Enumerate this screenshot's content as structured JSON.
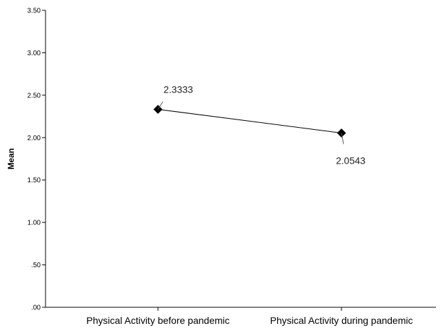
{
  "chart_data": {
    "type": "line",
    "categories": [
      "Physical Activity before pandemic",
      "Physical Activity during pandemic"
    ],
    "values": [
      2.3333,
      2.0543
    ],
    "data_labels": [
      "2.3333",
      "2.0543"
    ],
    "ylabel": "Mean",
    "xlabel": "",
    "ylim": [
      0,
      3.5
    ],
    "yticks": [
      0,
      0.5,
      1.0,
      1.5,
      2.0,
      2.5,
      3.0,
      3.5
    ],
    "ytick_labels": [
      ".00",
      ".50",
      "1.00",
      "1.50",
      "2.00",
      "2.50",
      "3.00",
      "3.50"
    ],
    "marker": "diamond",
    "grid": false,
    "colors": {
      "line": "#000000",
      "marker": "#000000",
      "axis": "#000000"
    }
  }
}
